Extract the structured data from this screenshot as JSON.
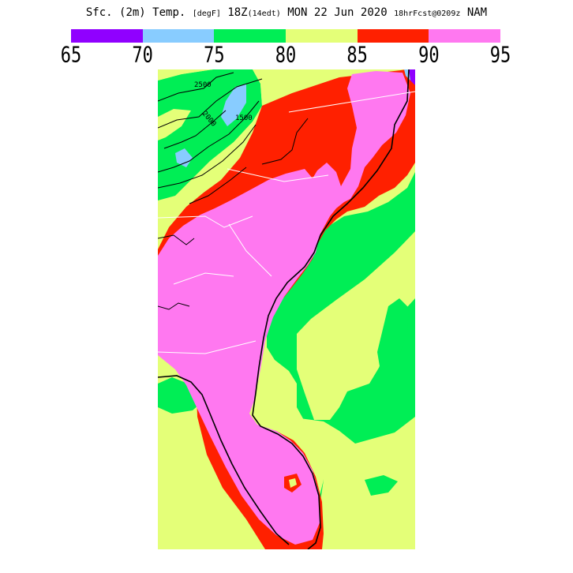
{
  "header": {
    "title_prefix": "Sfc. (2m) Temp.",
    "unit": "[degF]",
    "time": "18Z",
    "local_time": "(14edt)",
    "date": "MON 22 Jun 2020",
    "forecast": "18hrFcst@0209z",
    "model": "NAM"
  },
  "legend": {
    "colors": [
      "#9000ff",
      "#88ccff",
      "#00ee55",
      "#e4ff78",
      "#ff2000",
      "#ff78f0"
    ],
    "ticks": [
      "65",
      "70",
      "75",
      "80",
      "85",
      "90",
      "95"
    ]
  },
  "map": {
    "region": "southeastern-us",
    "contour_labels": [
      "2500",
      "2000",
      "1500"
    ]
  }
}
